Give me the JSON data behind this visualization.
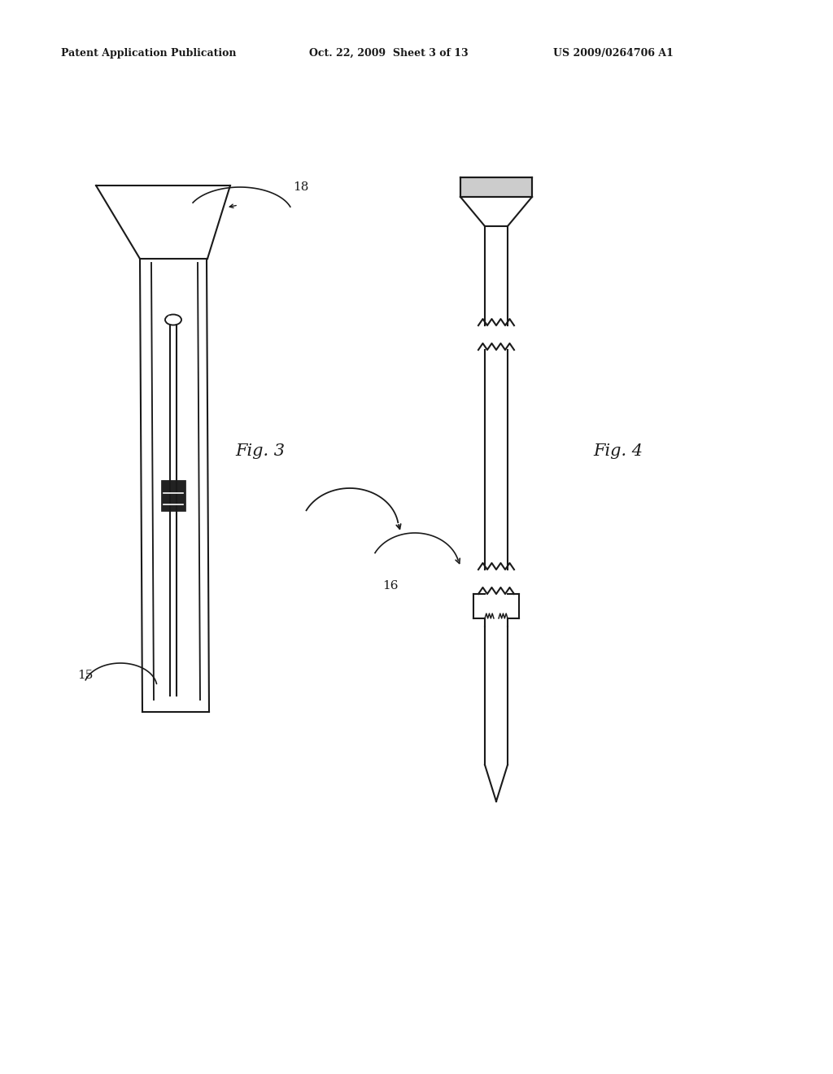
{
  "bg_color": "#ffffff",
  "line_color": "#1a1a1a",
  "header_left": "Patent Application Publication",
  "header_mid": "Oct. 22, 2009  Sheet 3 of 13",
  "header_right": "US 2009/0264706 A1",
  "fig3_label": "Fig. 3",
  "fig4_label": "Fig. 4",
  "label_15": "15",
  "label_16": "16",
  "label_18": "18"
}
